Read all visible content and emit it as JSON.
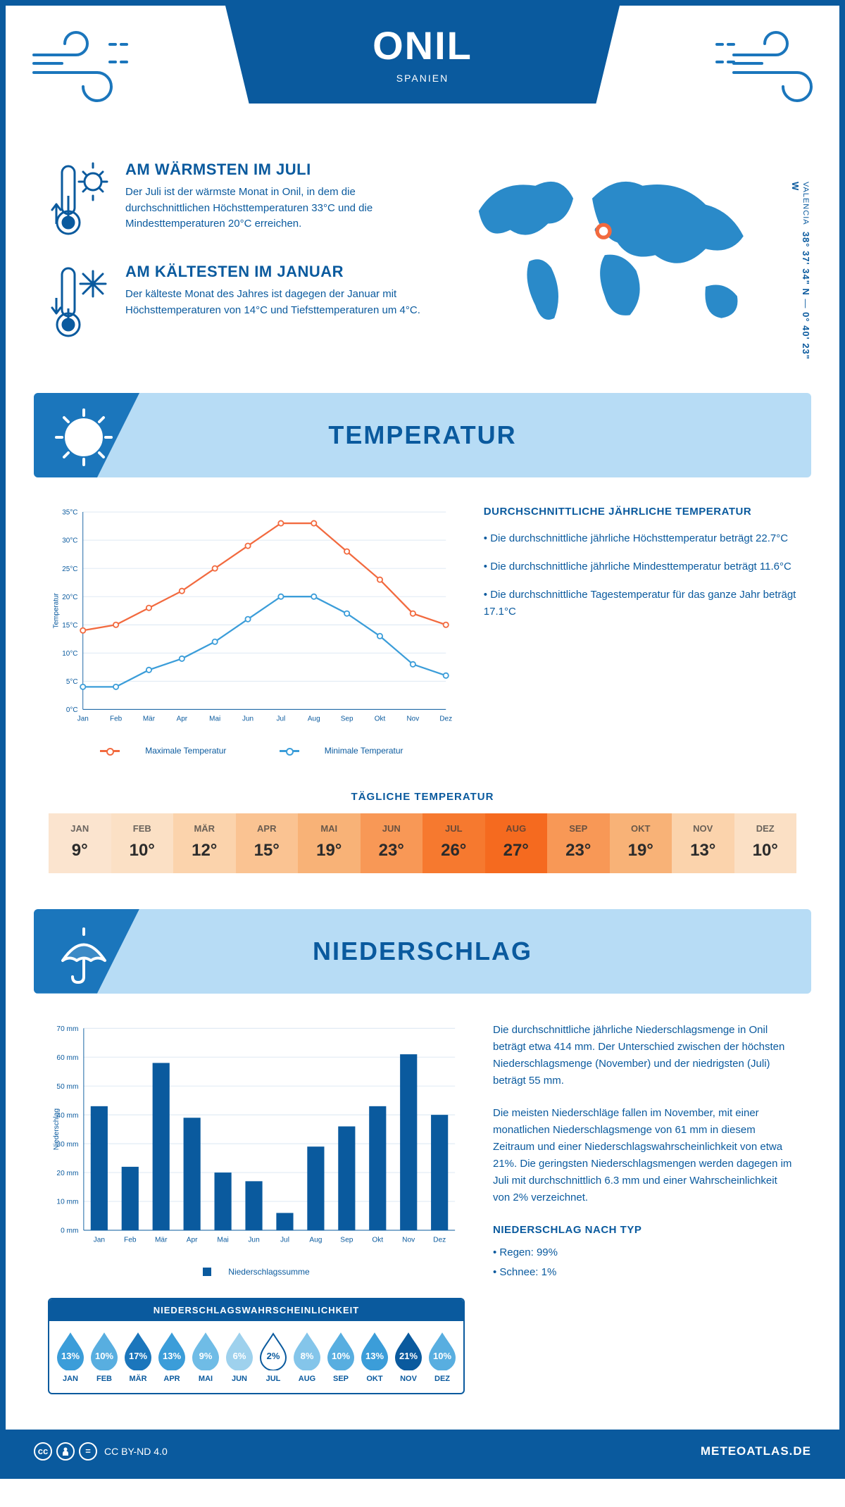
{
  "header": {
    "title": "ONIL",
    "subtitle": "SPANIEN"
  },
  "coords": {
    "lat": "38° 37' 34\" N",
    "lon": "0° 40' 23\" W",
    "region": "VALENCIA"
  },
  "warmest": {
    "title": "AM WÄRMSTEN IM JULI",
    "text": "Der Juli ist der wärmste Monat in Onil, in dem die durchschnittlichen Höchsttemperaturen 33°C und die Mindesttemperaturen 20°C erreichen."
  },
  "coldest": {
    "title": "AM KÄLTESTEN IM JANUAR",
    "text": "Der kälteste Monat des Jahres ist dagegen der Januar mit Höchsttemperaturen von 14°C und Tiefsttemperaturen um 4°C."
  },
  "sections": {
    "temperature": "TEMPERATUR",
    "precipitation": "NIEDERSCHLAG"
  },
  "temp_chart": {
    "type": "line",
    "months": [
      "Jan",
      "Feb",
      "Mär",
      "Apr",
      "Mai",
      "Jun",
      "Jul",
      "Aug",
      "Sep",
      "Okt",
      "Nov",
      "Dez"
    ],
    "max_series": [
      14,
      15,
      18,
      21,
      25,
      29,
      33,
      33,
      28,
      23,
      17,
      15
    ],
    "min_series": [
      4,
      4,
      7,
      9,
      12,
      16,
      20,
      20,
      17,
      13,
      8,
      6
    ],
    "max_color": "#f26a3f",
    "min_color": "#3b9dd9",
    "grid_color": "#d9e6f2",
    "axis_color": "#0a5a9e",
    "ylim": [
      0,
      35
    ],
    "ystep": 5,
    "ylabel": "Temperatur",
    "legend_max": "Maximale Temperatur",
    "legend_min": "Minimale Temperatur"
  },
  "temp_facts": {
    "heading": "DURCHSCHNITTLICHE JÄHRLICHE TEMPERATUR",
    "bullet1": "• Die durchschnittliche jährliche Höchsttemperatur beträgt 22.7°C",
    "bullet2": "• Die durchschnittliche jährliche Mindesttemperatur beträgt 11.6°C",
    "bullet3": "• Die durchschnittliche Tagestemperatur für das ganze Jahr beträgt 17.1°C"
  },
  "daily": {
    "title": "TÄGLICHE TEMPERATUR",
    "months": [
      "JAN",
      "FEB",
      "MÄR",
      "APR",
      "MAI",
      "JUN",
      "JUL",
      "AUG",
      "SEP",
      "OKT",
      "NOV",
      "DEZ"
    ],
    "values": [
      "9°",
      "10°",
      "12°",
      "15°",
      "19°",
      "23°",
      "26°",
      "27°",
      "23°",
      "19°",
      "13°",
      "10°"
    ],
    "colors": [
      "#fbe4cf",
      "#fbe0c5",
      "#fbd3ac",
      "#fac392",
      "#f8b277",
      "#f89856",
      "#f6792f",
      "#f56a1f",
      "#f89856",
      "#f8b277",
      "#fbd3ac",
      "#fbe0c5"
    ]
  },
  "precip_chart": {
    "type": "bar",
    "months": [
      "Jan",
      "Feb",
      "Mär",
      "Apr",
      "Mai",
      "Jun",
      "Jul",
      "Aug",
      "Sep",
      "Okt",
      "Nov",
      "Dez"
    ],
    "values": [
      43,
      22,
      58,
      39,
      20,
      17,
      6,
      29,
      36,
      43,
      61,
      40
    ],
    "bar_color": "#0a5a9e",
    "grid_color": "#d9e6f2",
    "ylim": [
      0,
      70
    ],
    "ystep": 10,
    "ylabel": "Niederschlag",
    "legend": "Niederschlagssumme"
  },
  "precip_text": {
    "p1": "Die durchschnittliche jährliche Niederschlagsmenge in Onil beträgt etwa 414 mm. Der Unterschied zwischen der höchsten Niederschlagsmenge (November) und der niedrigsten (Juli) beträgt 55 mm.",
    "p2": "Die meisten Niederschläge fallen im November, mit einer monatlichen Niederschlagsmenge von 61 mm in diesem Zeitraum und einer Niederschlagswahrscheinlichkeit von etwa 21%. Die geringsten Niederschlagsmengen werden dagegen im Juli mit durchschnittlich 6.3 mm und einer Wahrscheinlichkeit von 2% verzeichnet.",
    "type_heading": "NIEDERSCHLAG NACH TYP",
    "type1": "• Regen: 99%",
    "type2": "• Schnee: 1%"
  },
  "probability": {
    "title": "NIEDERSCHLAGSWAHRSCHEINLICHKEIT",
    "months": [
      "JAN",
      "FEB",
      "MÄR",
      "APR",
      "MAI",
      "JUN",
      "JUL",
      "AUG",
      "SEP",
      "OKT",
      "NOV",
      "DEZ"
    ],
    "values": [
      "13%",
      "10%",
      "17%",
      "13%",
      "9%",
      "6%",
      "2%",
      "8%",
      "10%",
      "13%",
      "21%",
      "10%"
    ],
    "fill_colors": [
      "#3b9dd9",
      "#58aee0",
      "#1b76bc",
      "#3b9dd9",
      "#6fbce6",
      "#9ed1ed",
      "#ffffff",
      "#84c5ea",
      "#58aee0",
      "#3b9dd9",
      "#0a5a9e",
      "#58aee0"
    ],
    "text_colors": [
      "#ffffff",
      "#ffffff",
      "#ffffff",
      "#ffffff",
      "#ffffff",
      "#ffffff",
      "#0a5a9e",
      "#ffffff",
      "#ffffff",
      "#ffffff",
      "#ffffff",
      "#ffffff"
    ]
  },
  "footer": {
    "license": "CC BY-ND 4.0",
    "site": "METEOATLAS.DE"
  }
}
